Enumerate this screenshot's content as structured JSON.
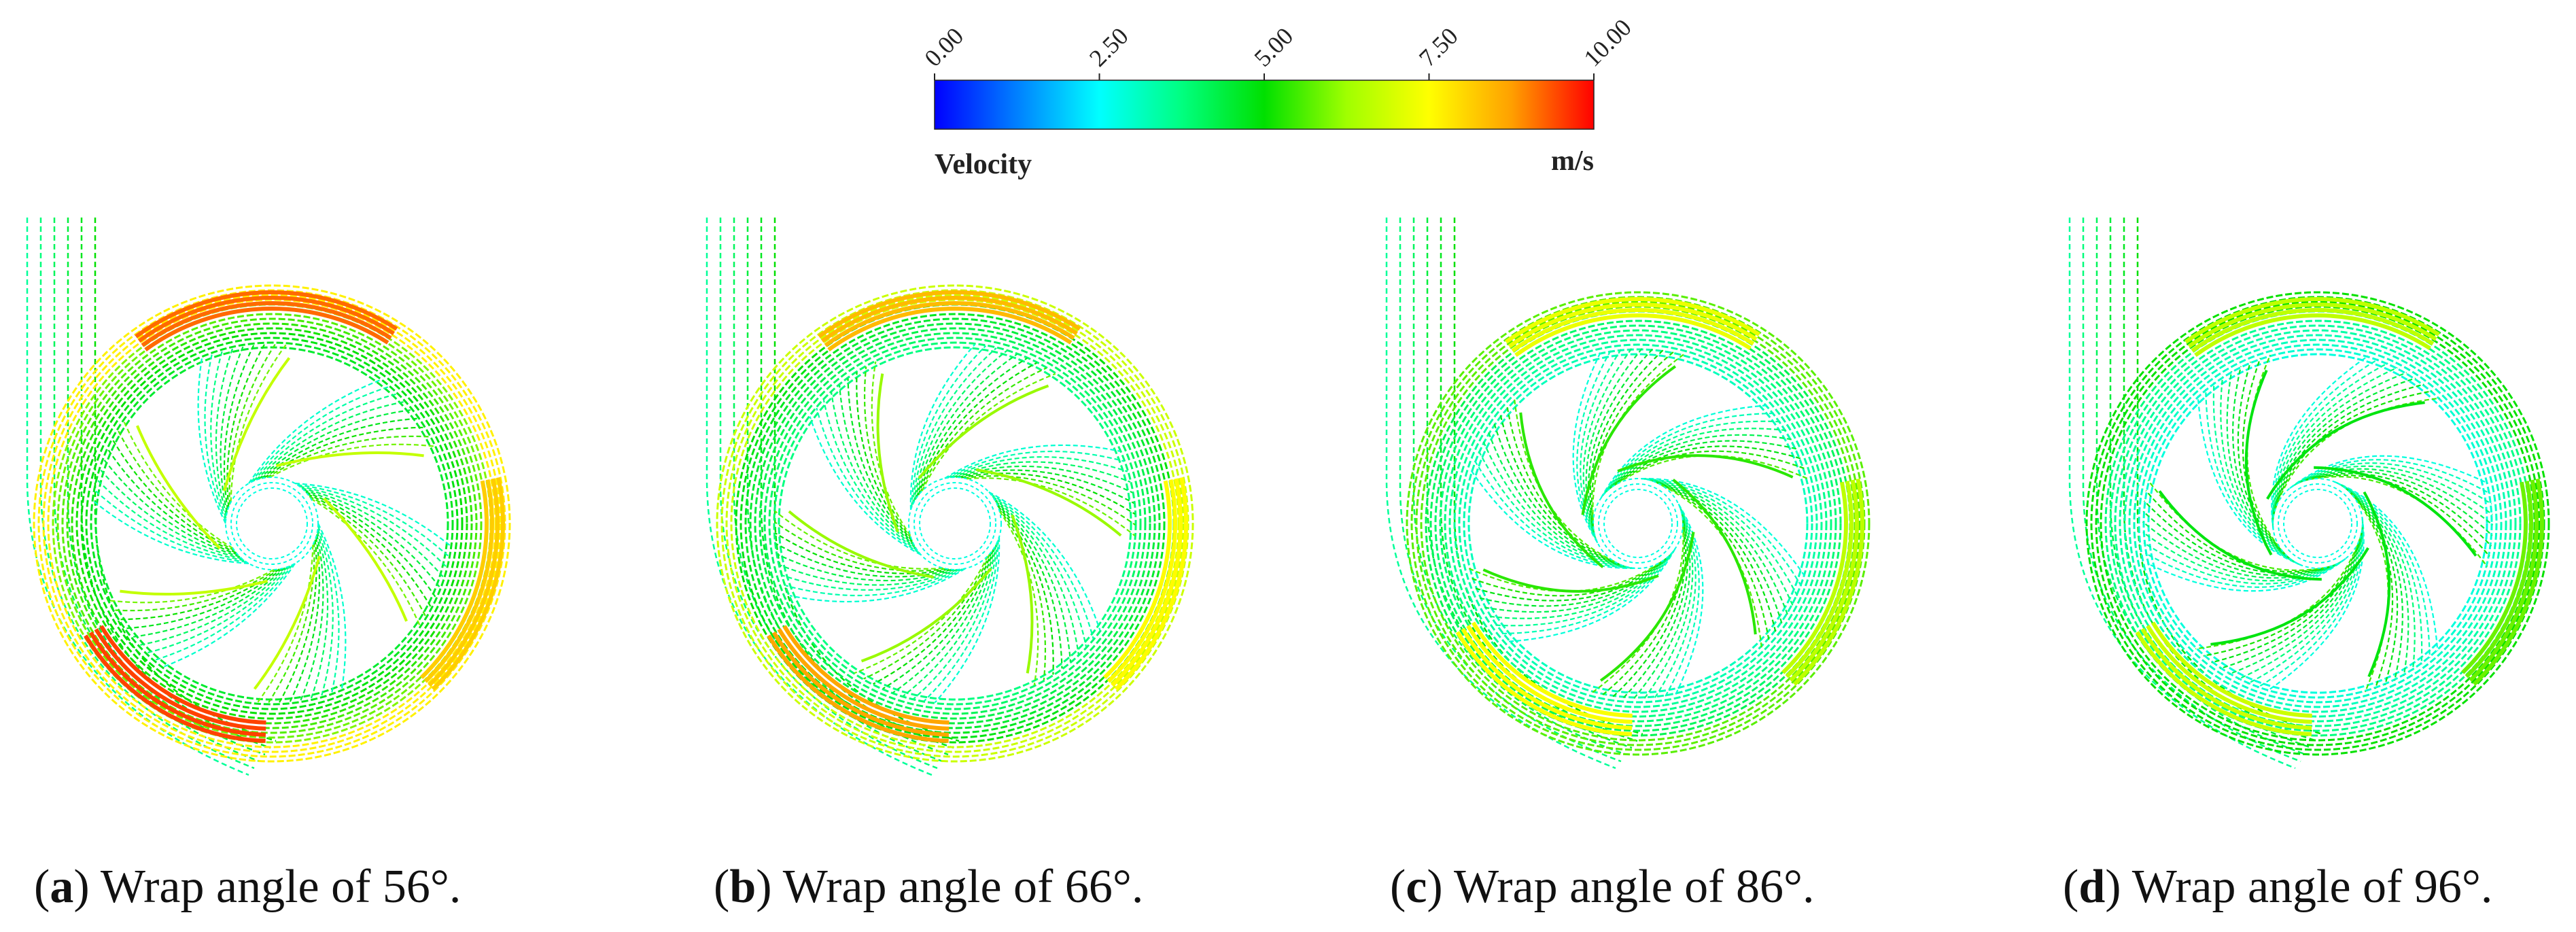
{
  "colorbar": {
    "title": "Velocity",
    "unit": "m/s",
    "ticks": [
      "0.00",
      "2.50",
      "5.00",
      "7.50",
      "10.00"
    ],
    "min": 0,
    "max": 10,
    "gradient_colors": [
      "#0000ff",
      "#00a0ff",
      "#00ffff",
      "#00ff7f",
      "#00e000",
      "#b4ff00",
      "#ffff00",
      "#ffa500",
      "#ff0000"
    ]
  },
  "panels": [
    {
      "id": "a",
      "letter": "a",
      "label": "Wrap angle of 56°.",
      "wrap_angle": 56
    },
    {
      "id": "b",
      "letter": "b",
      "label": "Wrap angle of 66°.",
      "wrap_angle": 66
    },
    {
      "id": "c",
      "letter": "c",
      "label": "Wrap angle of 86°.",
      "wrap_angle": 86
    },
    {
      "id": "d",
      "letter": "d",
      "label": "Wrap angle of 96°.",
      "wrap_angle": 96
    }
  ],
  "colors": {
    "low": "#40d8e0",
    "mid": "#5ec840",
    "high": "#f0e040",
    "peak": "#e04030",
    "outline": "#333333"
  }
}
